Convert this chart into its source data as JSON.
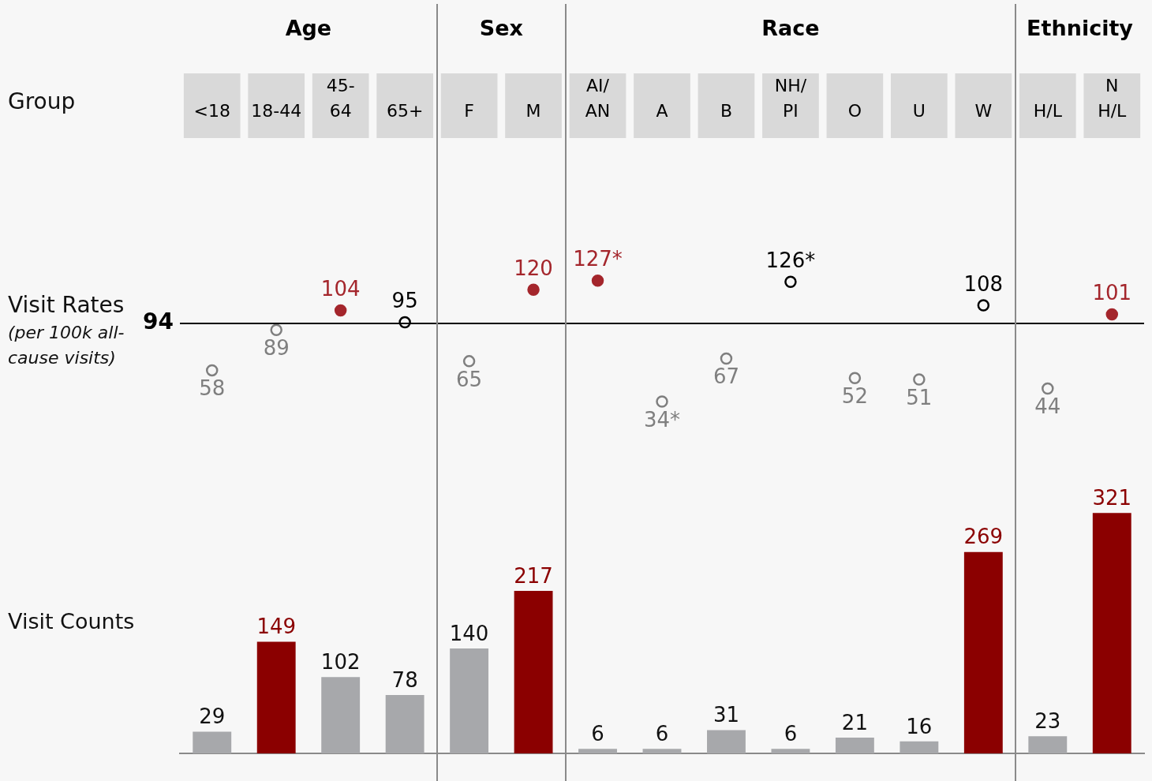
{
  "chart_data": [
    {
      "type": "other",
      "annotations": [
        "Age",
        "Sex",
        "Race",
        "Ethnicity",
        "Group",
        "Visit Rates",
        "(per 100k all-cause visits)",
        "Visit Counts"
      ]
    },
    {
      "type": "scatter",
      "categories": [
        "<18",
        "18-44",
        "45-\n64",
        "65+",
        "F",
        "M",
        "AI/\nAN",
        "A",
        "B",
        "NH/\nPI",
        "O",
        "U",
        "W",
        "H/L",
        "N\nH/L"
      ],
      "tick_labels": "x",
      "marker": "circle",
      "ref_lines": [
        {
          "axis": "y",
          "value": 94,
          "label": "94"
        }
      ],
      "series": [
        {
          "color": "#a4262c",
          "values": [
            null,
            null,
            104,
            null,
            null,
            120,
            127,
            null,
            null,
            null,
            null,
            null,
            null,
            null,
            101
          ],
          "value_labels": [
            null,
            null,
            "104",
            null,
            null,
            "120",
            "127*",
            null,
            null,
            null,
            null,
            null,
            null,
            null,
            "101"
          ]
        },
        {
          "color": "#000000",
          "values": [
            null,
            null,
            null,
            95,
            null,
            null,
            null,
            null,
            null,
            126,
            null,
            null,
            108,
            null,
            null
          ],
          "value_labels": [
            null,
            null,
            null,
            "95",
            null,
            null,
            null,
            null,
            null,
            "126*",
            null,
            null,
            "108",
            null,
            null
          ]
        },
        {
          "color": "#7f7f7f",
          "values": [
            58,
            89,
            null,
            null,
            65,
            null,
            null,
            34,
            67,
            null,
            52,
            51,
            null,
            44,
            null
          ],
          "value_labels": [
            "58",
            "89",
            null,
            null,
            "65",
            null,
            null,
            "34*",
            "67",
            null,
            "52",
            "51",
            null,
            "44",
            null
          ]
        }
      ]
    },
    {
      "type": "bar",
      "categories": [
        null,
        null,
        null,
        null,
        null,
        null,
        null,
        null,
        null,
        null,
        null,
        null,
        null,
        null,
        null
      ],
      "values": [
        29,
        149,
        102,
        78,
        140,
        217,
        6,
        6,
        31,
        6,
        21,
        16,
        269,
        23,
        321
      ],
      "colors": [
        "#a7a8ab",
        "#8b0000",
        "#a7a8ab",
        "#a7a8ab",
        "#a7a8ab",
        "#8b0000",
        "#a7a8ab",
        "#a7a8ab",
        "#a7a8ab",
        "#a7a8ab",
        "#a7a8ab",
        "#a7a8ab",
        "#8b0000",
        "#a7a8ab",
        "#8b0000"
      ],
      "tick_labels": false,
      "data_labels": true
    }
  ]
}
